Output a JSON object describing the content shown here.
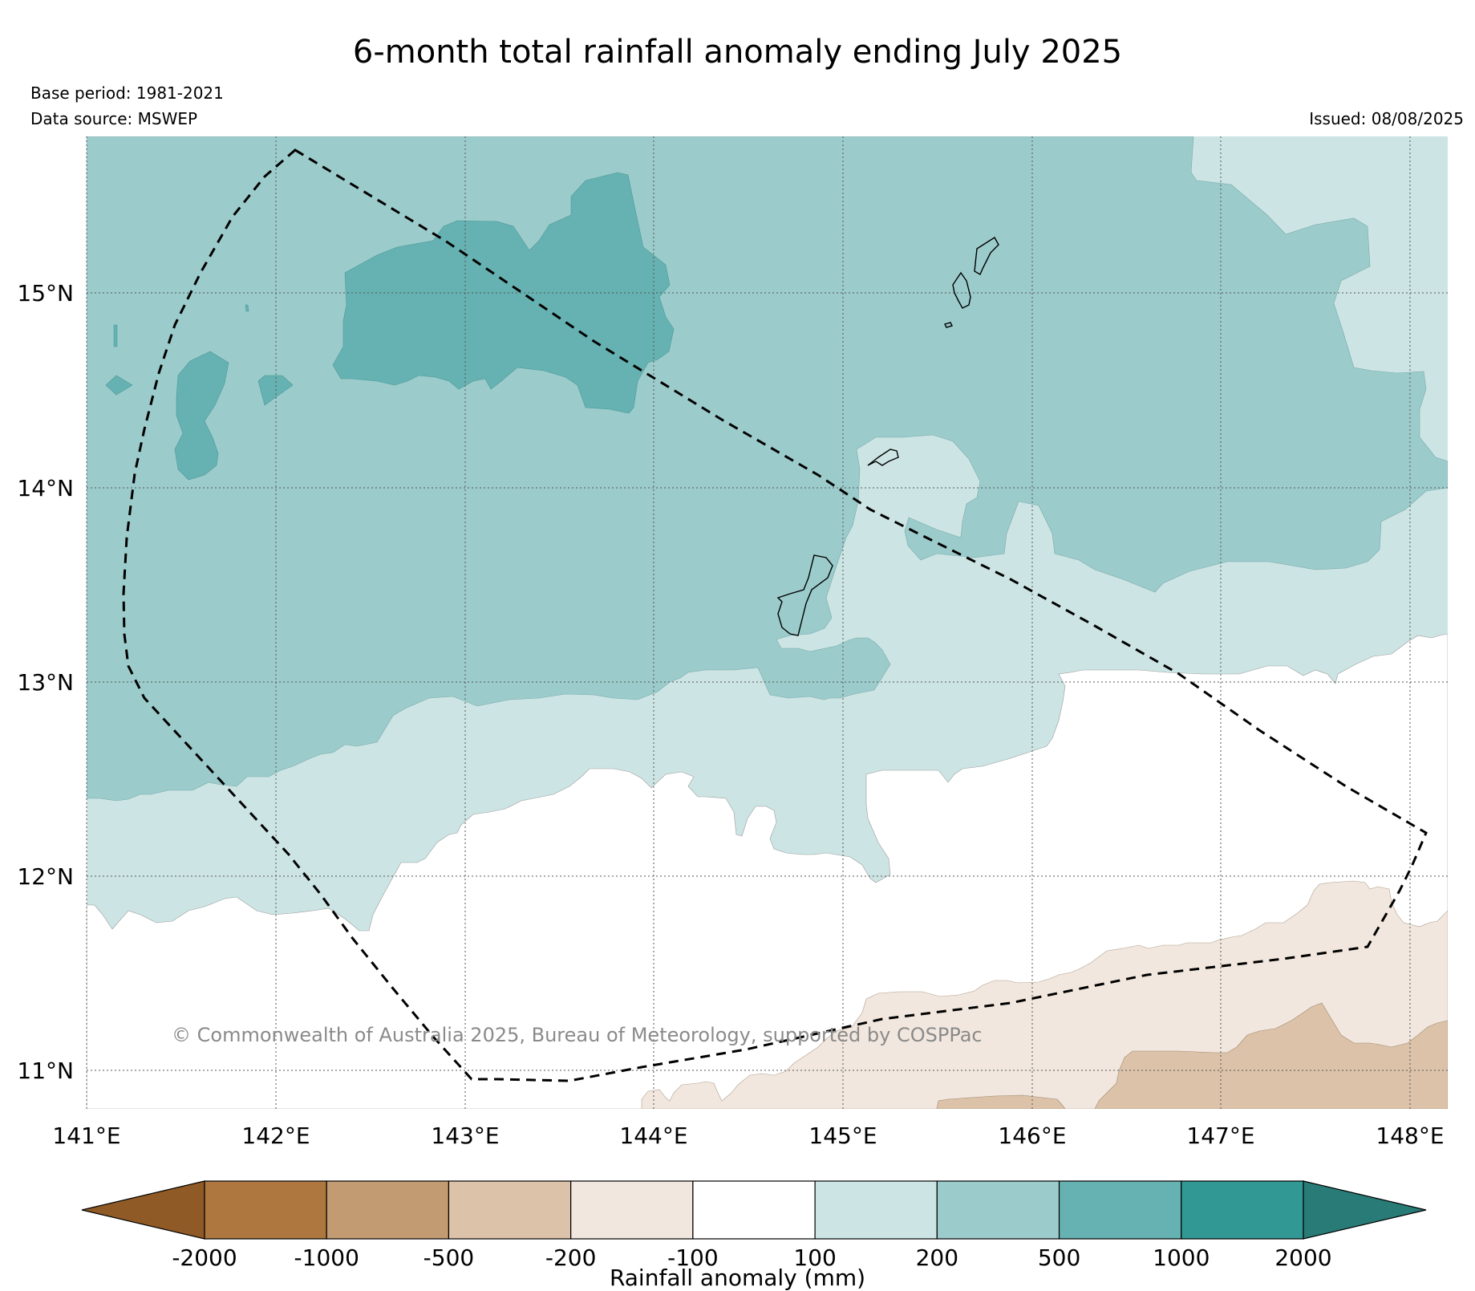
{
  "title": "6-month total rainfall anomaly ending July 2025",
  "base_period": "Base period: 1981-2021",
  "data_source": "Data source: MSWEP",
  "issued": "Issued: 08/08/2025",
  "copyright": "© Commonwealth of Australia 2025, Bureau of Meteorology, supported by COSPPac",
  "map": {
    "lon_ticks": [
      "141°E",
      "142°E",
      "143°E",
      "144°E",
      "145°E",
      "146°E",
      "147°E",
      "148°E"
    ],
    "lat_ticks": [
      "15°N",
      "14°N",
      "13°N",
      "12°N",
      "11°N"
    ],
    "lon_range": [
      141,
      148.2
    ],
    "lat_range": [
      10.8,
      15.8
    ]
  },
  "colorbar": {
    "title": "Rainfall anomaly (mm)",
    "boundaries": [
      "-2000",
      "-1000",
      "-500",
      "-200",
      "-100",
      "100",
      "200",
      "500",
      "1000",
      "2000"
    ],
    "colors": [
      "#8f5a26",
      "#ad773f",
      "#c39b72",
      "#dbc2a9",
      "#f1e7de",
      "#ffffff",
      "#cce5e4",
      "#9ccbcb",
      "#66b1b1",
      "#329894",
      "#287b76"
    ]
  }
}
